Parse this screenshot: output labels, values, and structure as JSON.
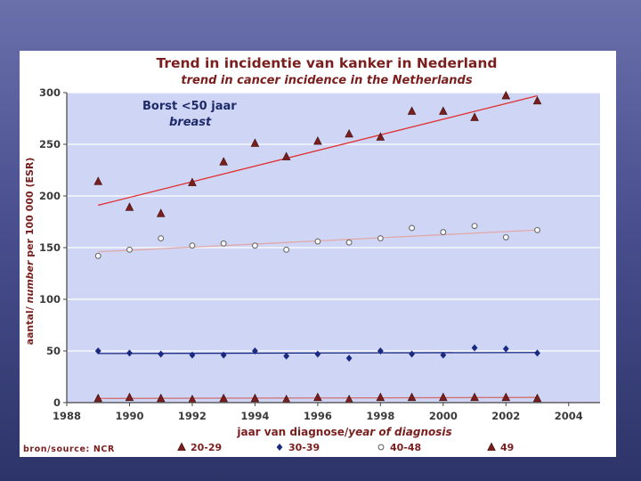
{
  "chart_data": {
    "type": "scatter",
    "title": "Trend in incidentie van kanker in Nederland",
    "subtitle": "trend in cancer incidence in the Netherlands",
    "annotation": {
      "line1": "Borst <50 jaar",
      "line2": "breast"
    },
    "xlabel": {
      "part1": "jaar van diagnose/",
      "part2": "year of diagnosis"
    },
    "ylabel": {
      "part1": "aantal/ ",
      "part2": "number",
      "part3": " per 100 000 (ESR)"
    },
    "xlim": [
      1988,
      2005
    ],
    "ylim": [
      0,
      300
    ],
    "x_ticks": [
      "1988",
      "1990",
      "1992",
      "1994",
      "1996",
      "1998",
      "2000",
      "2002",
      "2004"
    ],
    "y_ticks": [
      "0",
      "50",
      "100",
      "150",
      "200",
      "250",
      "300"
    ],
    "grid": "horizontal",
    "legend_position": "bottom",
    "source": "bron/source: NCR",
    "x": [
      1989,
      1990,
      1991,
      1992,
      1993,
      1994,
      1995,
      1996,
      1997,
      1998,
      1999,
      2000,
      2001,
      2002,
      2003
    ],
    "series": [
      {
        "name": "20-29",
        "marker": "triangle",
        "color": "#7a1e1e",
        "trend_color": "#d07070",
        "values": [
          4,
          5,
          4,
          3,
          4,
          4,
          3,
          5,
          3,
          5,
          5,
          5,
          5,
          5,
          4
        ],
        "trend": [
          4,
          5
        ]
      },
      {
        "name": "30-39",
        "marker": "diamond",
        "color": "#1a2a80",
        "trend_color": "#1a2a80",
        "values": [
          50,
          48,
          47,
          46,
          46,
          50,
          45,
          47,
          43,
          50,
          47,
          46,
          53,
          52,
          48
        ],
        "trend": [
          47.5,
          48.5
        ]
      },
      {
        "name": "40-48",
        "marker": "circle",
        "color": "#6a6a6a",
        "trend_color": "#e0a8a8",
        "values": [
          142,
          148,
          159,
          152,
          154,
          152,
          148,
          156,
          155,
          159,
          169,
          165,
          171,
          160,
          167
        ],
        "trend": [
          146,
          167
        ]
      },
      {
        "name": "49",
        "marker": "triangle",
        "color": "#7a1e1e",
        "trend_color": "#e03030",
        "values": [
          214,
          189,
          183,
          213,
          233,
          251,
          238,
          253,
          260,
          257,
          282,
          282,
          276,
          297,
          292
        ],
        "trend": [
          191,
          297
        ]
      }
    ],
    "colors": {
      "plot_bg": "#cfd6f5",
      "grid": "#ffffff",
      "axis": "#444444"
    }
  }
}
